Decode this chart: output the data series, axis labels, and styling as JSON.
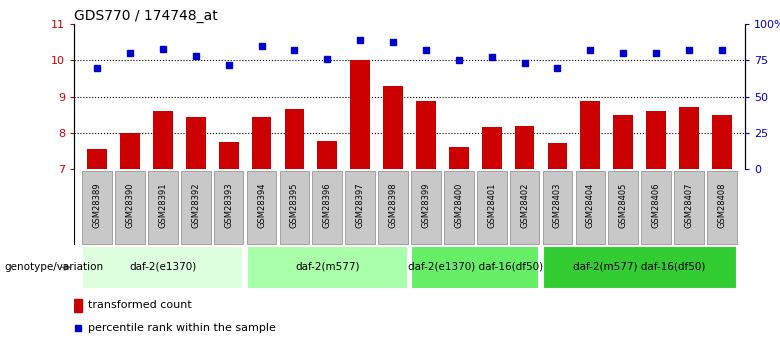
{
  "title": "GDS770 / 174748_at",
  "samples": [
    "GSM28389",
    "GSM28390",
    "GSM28391",
    "GSM28392",
    "GSM28393",
    "GSM28394",
    "GSM28395",
    "GSM28396",
    "GSM28397",
    "GSM28398",
    "GSM28399",
    "GSM28400",
    "GSM28401",
    "GSM28402",
    "GSM28403",
    "GSM28404",
    "GSM28405",
    "GSM28406",
    "GSM28407",
    "GSM28408"
  ],
  "bar_values": [
    7.55,
    8.0,
    8.6,
    8.45,
    7.75,
    8.45,
    8.65,
    7.78,
    10.0,
    9.3,
    8.88,
    7.62,
    8.15,
    8.18,
    7.72,
    8.87,
    8.5,
    8.6,
    8.72,
    8.5
  ],
  "dot_values": [
    70,
    80,
    83,
    78,
    72,
    85,
    82,
    76,
    89,
    88,
    82,
    75,
    77,
    73,
    70,
    82,
    80,
    80,
    82,
    82
  ],
  "ylim_left": [
    7,
    11
  ],
  "ylim_right": [
    0,
    100
  ],
  "yticks_left": [
    7,
    8,
    9,
    10,
    11
  ],
  "yticks_right": [
    0,
    25,
    50,
    75,
    100
  ],
  "ytick_labels_right": [
    "0",
    "25",
    "50",
    "75",
    "100%"
  ],
  "bar_color": "#cc0000",
  "dot_color": "#0000cc",
  "groups": [
    {
      "label": "daf-2(e1370)",
      "start": 0,
      "end": 5,
      "color": "#ddffdd"
    },
    {
      "label": "daf-2(m577)",
      "start": 5,
      "end": 10,
      "color": "#aaffaa"
    },
    {
      "label": "daf-2(e1370) daf-16(df50)",
      "start": 10,
      "end": 14,
      "color": "#66ee66"
    },
    {
      "label": "daf-2(m577) daf-16(df50)",
      "start": 14,
      "end": 20,
      "color": "#33cc33"
    }
  ],
  "genotype_label": "genotype/variation",
  "legend_bar_label": "transformed count",
  "legend_dot_label": "percentile rank within the sample",
  "title_fontsize": 10,
  "tick_fontsize": 8,
  "bar_width": 0.6,
  "background_color": "#ffffff",
  "sample_box_color": "#c8c8c8",
  "sample_box_edge": "#888888"
}
